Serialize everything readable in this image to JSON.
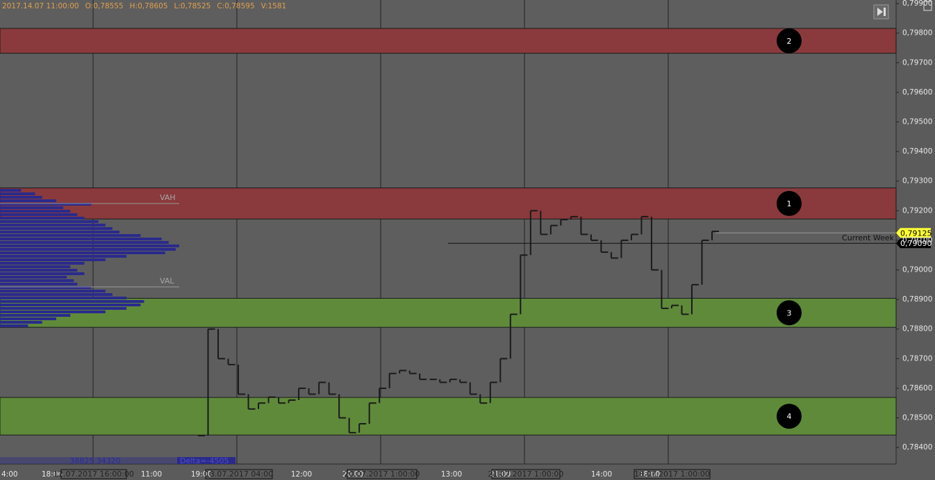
{
  "chart_data": {
    "type": "price-chart",
    "header": [
      "2017.14.07 11:00:00",
      "O:0,78555",
      "H:0,78605",
      "L:0,78525",
      "C:0,78595",
      "V:1581"
    ],
    "yticks": [
      {
        "value": 0.799,
        "label": "0,79900"
      },
      {
        "value": 0.798,
        "label": "0,79800"
      },
      {
        "value": 0.797,
        "label": "0,79700"
      },
      {
        "value": 0.796,
        "label": "0,79600"
      },
      {
        "value": 0.795,
        "label": "0,79500"
      },
      {
        "value": 0.794,
        "label": "0,79400"
      },
      {
        "value": 0.793,
        "label": "0,79300"
      },
      {
        "value": 0.792,
        "label": "0,79200"
      },
      {
        "value": 0.791,
        "label": "0,79100"
      },
      {
        "value": 0.79,
        "label": "0,79000"
      },
      {
        "value": 0.789,
        "label": "0,78900"
      },
      {
        "value": 0.788,
        "label": "0,78800"
      },
      {
        "value": 0.787,
        "label": "0,78700"
      },
      {
        "value": 0.786,
        "label": "0,78600"
      },
      {
        "value": 0.785,
        "label": "0,78500"
      },
      {
        "value": 0.784,
        "label": "0,78400"
      }
    ],
    "ylim": [
      0.79912,
      0.78344
    ],
    "zones": [
      {
        "label": "2",
        "low": 0.79732,
        "high": 0.79816,
        "color": "#8a3a3c"
      },
      {
        "label": "1",
        "low": 0.79172,
        "high": 0.79277,
        "color": "#8a3a3c"
      },
      {
        "label": "3",
        "low": 0.78806,
        "high": 0.78904,
        "color": "#5f8a3a"
      },
      {
        "label": "4",
        "low": 0.78442,
        "high": 0.78569,
        "color": "#5f8a3a"
      }
    ],
    "time_labels": [
      "4:00",
      "18:00",
      "11:00",
      "19:00",
      "12:00",
      "20:00",
      "13:00",
      "21:00",
      "14:00",
      "18:00"
    ],
    "date_labels": [
      "12.07.2017 16:00:00",
      "18.07.2017 04:00",
      "20.07.2017 1:00:00",
      "21.07.2017 1:00:00",
      "18.07.2017 1:00:00"
    ],
    "vah": "VAH",
    "val": "VAL",
    "current_week": "Current Week",
    "price_tags": [
      {
        "label": "0,79125",
        "value": 0.79125,
        "color": "#ffff33"
      },
      {
        "label": "0,79090",
        "value": 0.7909,
        "color": "#000000"
      }
    ],
    "profile_totals": "38825 34320",
    "delta": "Delta=-4505",
    "profile_color": "#2a2a8c",
    "volume_profile": [
      30,
      50,
      60,
      80,
      130,
      90,
      100,
      110,
      120,
      140,
      150,
      160,
      170,
      200,
      230,
      240,
      255,
      250,
      235,
      180,
      150,
      120,
      100,
      110,
      120,
      95,
      105,
      110,
      130,
      150,
      160,
      180,
      205,
      200,
      180,
      150,
      100,
      80,
      60,
      40
    ],
    "prices": [
      0.7844,
      0.788,
      0.787,
      0.7868,
      0.7858,
      0.7853,
      0.7855,
      0.7857,
      0.7855,
      0.7856,
      0.786,
      0.7858,
      0.7862,
      0.7858,
      0.785,
      0.7845,
      0.7848,
      0.7855,
      0.786,
      0.7865,
      0.7866,
      0.7865,
      0.7863,
      0.7863,
      0.7862,
      0.7863,
      0.7862,
      0.7858,
      0.7855,
      0.7862,
      0.787,
      0.7885,
      0.7905,
      0.792,
      0.7912,
      0.7915,
      0.7917,
      0.7918,
      0.7912,
      0.791,
      0.7906,
      0.7904,
      0.791,
      0.7912,
      0.7918,
      0.79,
      0.7887,
      0.7888,
      0.7885,
      0.7895,
      0.791,
      0.7913
    ],
    "price_color": "#1a1a1a"
  }
}
